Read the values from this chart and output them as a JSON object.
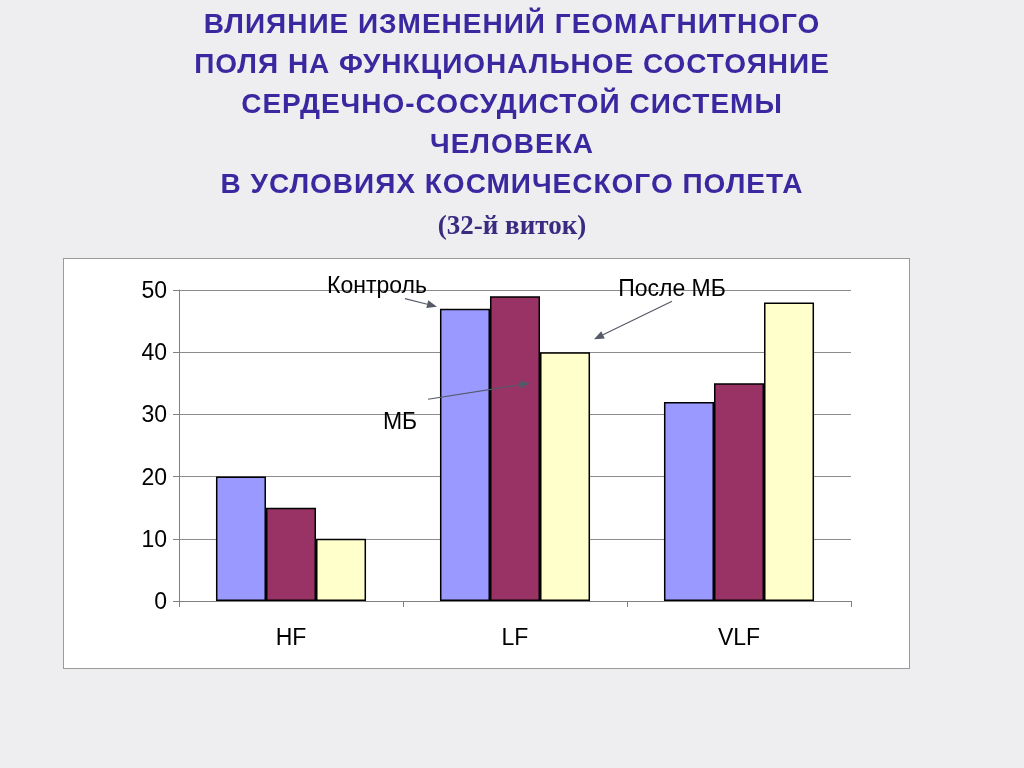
{
  "chart_data": {
    "type": "bar",
    "title": "ВЛИЯНИЕ ИЗМЕНЕНИЙ ГЕОМАГНИТНОГО\nПОЛЯ НА ФУНКЦИОНАЛЬНОЕ СОСТОЯНИЕ\nСЕРДЕЧНО-СОСУДИСТОЙ СИСТЕМЫ\nЧЕЛОВЕКА\nВ УСЛОВИЯХ КОСМИЧЕСКОГО ПОЛЕТА",
    "subtitle": "(32-й виток)",
    "categories": [
      "HF",
      "LF",
      "VLF"
    ],
    "series": [
      {
        "name": "Контроль",
        "color": "#9999ff",
        "values": [
          20,
          47,
          32
        ]
      },
      {
        "name": "МБ",
        "color": "#993366",
        "values": [
          15,
          49,
          35
        ]
      },
      {
        "name": "После МБ",
        "color": "#ffffcc",
        "values": [
          10,
          40,
          48
        ]
      }
    ],
    "ylim": [
      0,
      50
    ],
    "yticks": [
      0,
      10,
      20,
      30,
      40,
      50
    ],
    "grid": "y"
  }
}
